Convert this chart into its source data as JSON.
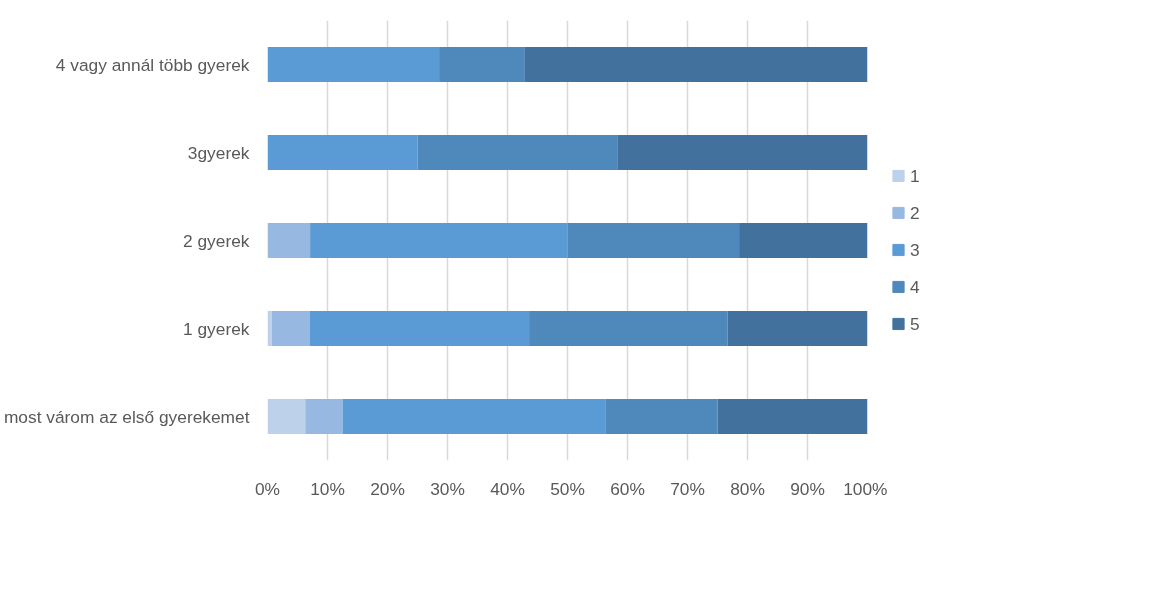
{
  "chart_data": {
    "type": "bar",
    "orientation": "horizontal",
    "stacked": true,
    "categories": [
      "4 vagy annál több gyerek",
      "3gyerek",
      "2 gyerek",
      "1 gyerek",
      "most várom az első gyerekemet"
    ],
    "series": [
      {
        "name": "1",
        "color": "#bdd1ea",
        "values": [
          0,
          0,
          0,
          0.7,
          6.3
        ]
      },
      {
        "name": "2",
        "color": "#97b8e0",
        "values": [
          0,
          0,
          7.1,
          6.3,
          6.2
        ]
      },
      {
        "name": "3",
        "color": "#5b9bd5",
        "values": [
          28.6,
          25,
          42.9,
          36.6,
          43.8
        ]
      },
      {
        "name": "4",
        "color": "#4f88bb",
        "values": [
          14.3,
          33.3,
          28.6,
          33.1,
          18.7
        ]
      },
      {
        "name": "5",
        "color": "#41719c",
        "values": [
          57.1,
          41.7,
          21.4,
          23.3,
          25
        ]
      }
    ],
    "xlim": [
      0,
      100
    ],
    "xticks": [
      {
        "value": 0,
        "label": "0%"
      },
      {
        "value": 10,
        "label": "10%"
      },
      {
        "value": 20,
        "label": "20%"
      },
      {
        "value": 30,
        "label": "30%"
      },
      {
        "value": 40,
        "label": "40%"
      },
      {
        "value": 50,
        "label": "50%"
      },
      {
        "value": 60,
        "label": "60%"
      },
      {
        "value": 70,
        "label": "70%"
      },
      {
        "value": 80,
        "label": "80%"
      },
      {
        "value": 90,
        "label": "90%"
      },
      {
        "value": 100,
        "label": "100%"
      }
    ],
    "grid": "x",
    "legend": "right"
  }
}
